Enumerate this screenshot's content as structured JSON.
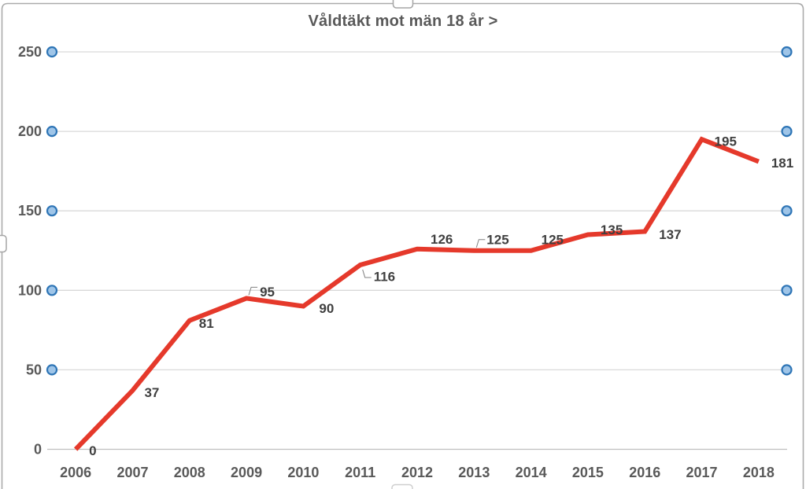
{
  "chart_data": {
    "type": "line",
    "title": "Våldtäkt mot män 18 år >",
    "categories": [
      "2006",
      "2007",
      "2008",
      "2009",
      "2010",
      "2011",
      "2012",
      "2013",
      "2014",
      "2015",
      "2016",
      "2017",
      "2018"
    ],
    "values": [
      0,
      37,
      81,
      95,
      90,
      116,
      126,
      125,
      125,
      135,
      137,
      195,
      181
    ],
    "data_labels": [
      "0",
      "37",
      "81",
      "95",
      "90",
      "116",
      "126",
      "125",
      "125",
      "135",
      "137",
      "195",
      "181"
    ],
    "xlabel": "",
    "ylabel": "",
    "ylim": [
      0,
      250
    ],
    "ytick_interval": 50,
    "ytick_labels": [
      "0",
      "50",
      "100",
      "150",
      "200",
      "250"
    ],
    "grid": "horizontal-major",
    "legend": "none",
    "colors": {
      "series_line": "#E5392B",
      "data_label_text": "#3F3F3F",
      "axis_tick_text": "#595959",
      "title_text": "#595959",
      "gridline": "#D9D9D9",
      "axis_line": "#BFBFBF",
      "leader_line": "#808080"
    }
  },
  "ui": {
    "selection": {
      "gridline_handle_fill": "#9FC5E8",
      "gridline_handle_stroke": "#2E75B6",
      "frame_border_color": "#ABABAB",
      "resize_handle_fill": "#FFFFFF",
      "resize_handle_stroke": "#A6A6A6"
    }
  }
}
